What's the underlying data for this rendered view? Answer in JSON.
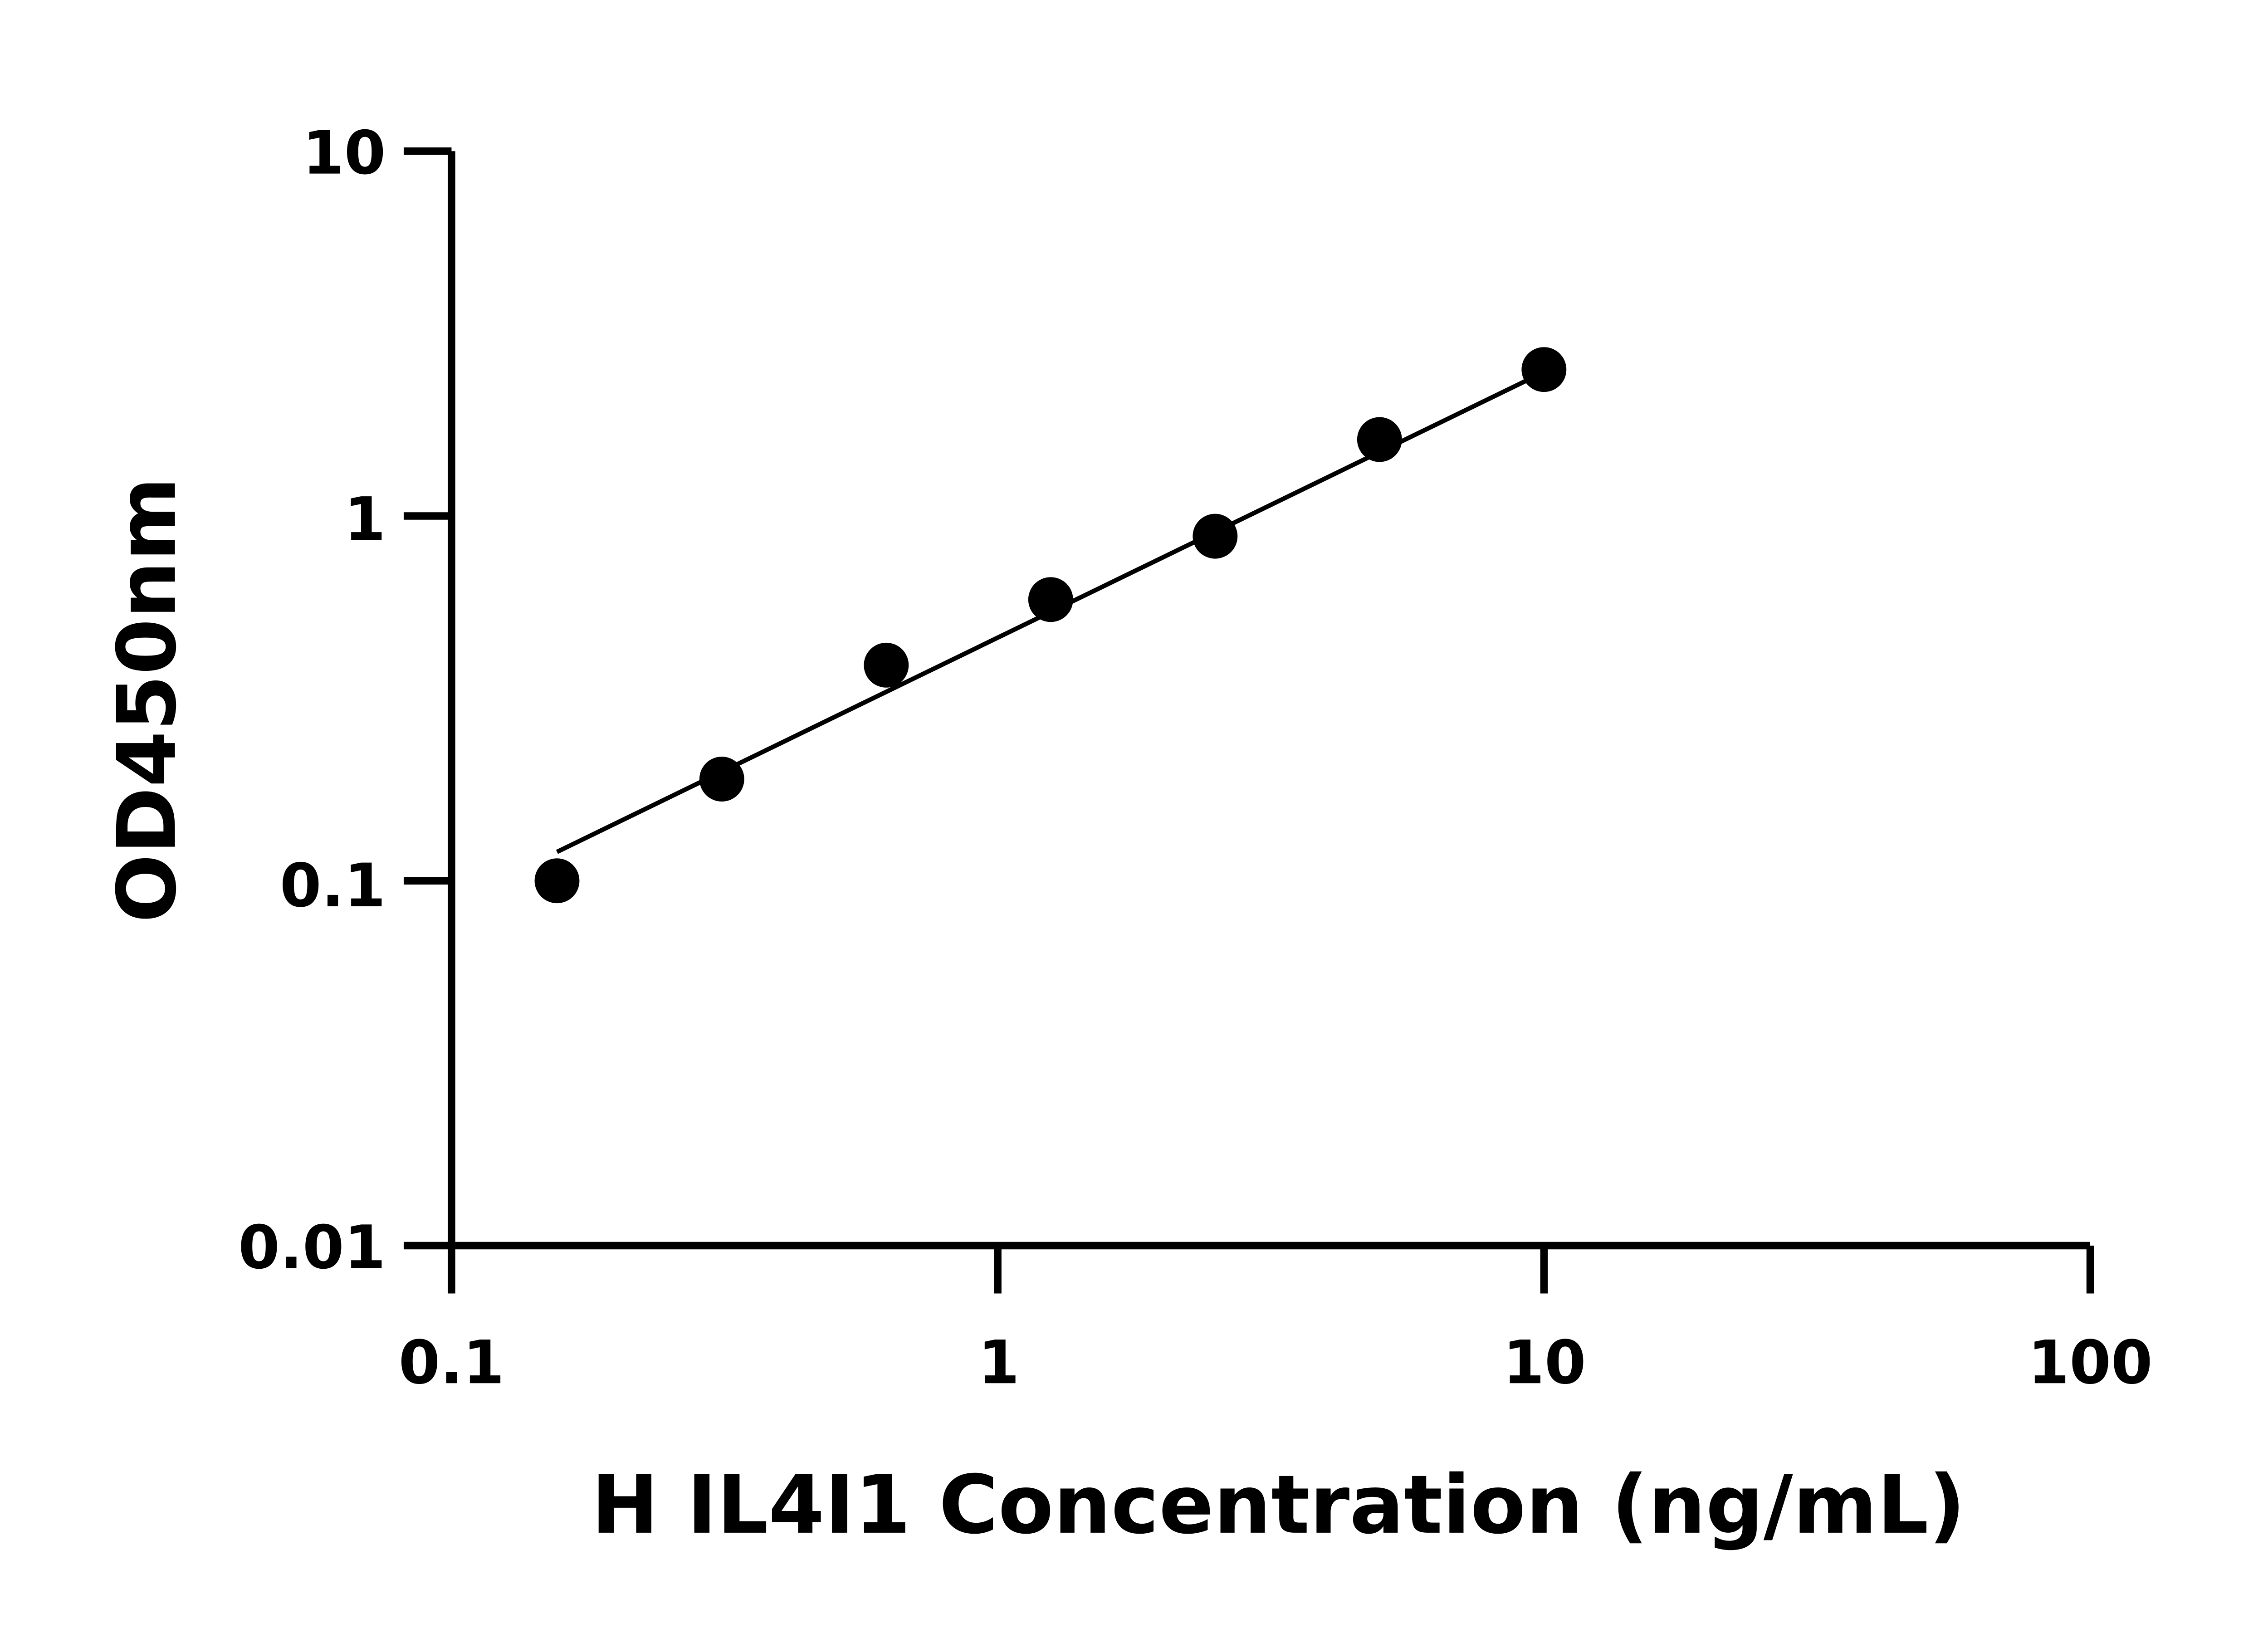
{
  "chart_data": {
    "type": "scatter",
    "title": "",
    "xlabel": "H IL4I1 Concentration (ng/mL)",
    "ylabel": "OD450nm",
    "x_scale": "log",
    "y_scale": "log",
    "xlim": [
      0.1,
      100
    ],
    "ylim": [
      0.01,
      10
    ],
    "x_ticks": [
      "0.1",
      "1",
      "10",
      "100"
    ],
    "y_ticks": [
      "0.01",
      "0.1",
      "1",
      "10"
    ],
    "grid": false,
    "series": [
      {
        "x": [
          0.156,
          0.3125,
          0.625,
          1.25,
          2.5,
          5,
          10
        ],
        "y": [
          0.1,
          0.19,
          0.39,
          0.59,
          0.88,
          1.62,
          2.52
        ],
        "color": "#000000",
        "marker": "circle"
      }
    ],
    "fit_line": {
      "x": [
        0.156,
        10
      ],
      "y": [
        0.12,
        2.48
      ],
      "color": "#000000"
    }
  }
}
